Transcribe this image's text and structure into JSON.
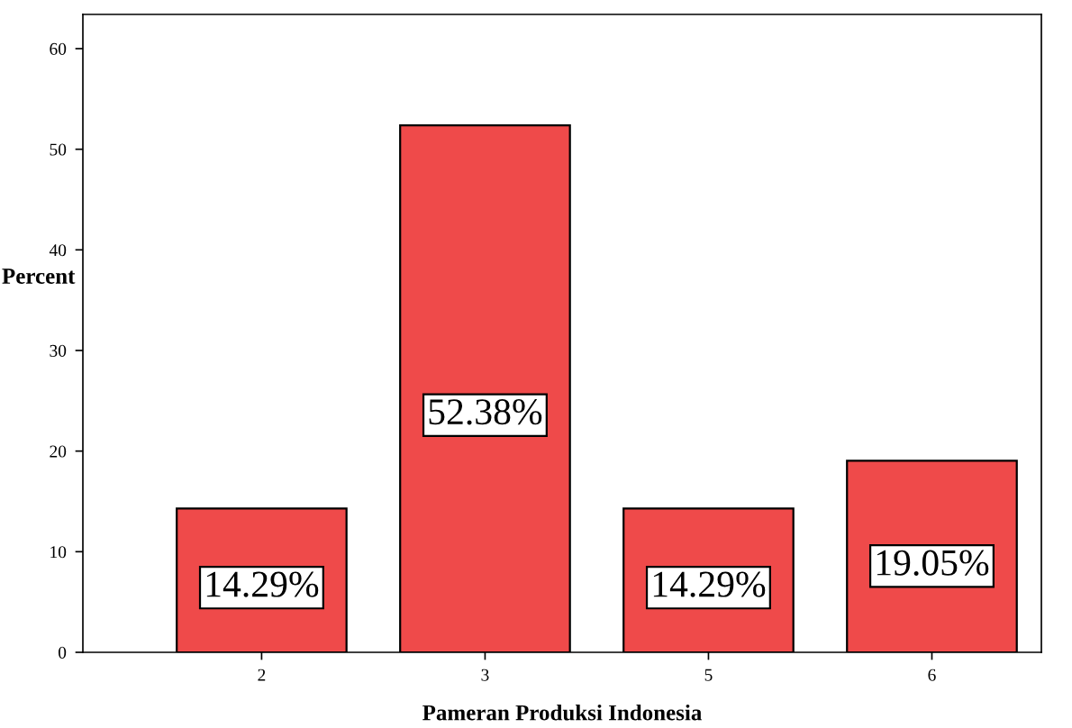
{
  "chart_data": {
    "type": "bar",
    "xlabel": "Pameran Produksi Indonesia",
    "ylabel": "Percent",
    "categories": [
      "2",
      "3",
      "5",
      "6"
    ],
    "values": [
      14.29,
      52.38,
      14.29,
      19.05
    ],
    "value_labels": [
      "14.29%",
      "52.38%",
      "14.29%",
      "19.05%"
    ],
    "color": "#ef4a4a",
    "ylim": [
      0,
      63.4
    ],
    "yticks": [
      0,
      10,
      20,
      30,
      40,
      50,
      60
    ],
    "grid": false,
    "legend": false
  }
}
